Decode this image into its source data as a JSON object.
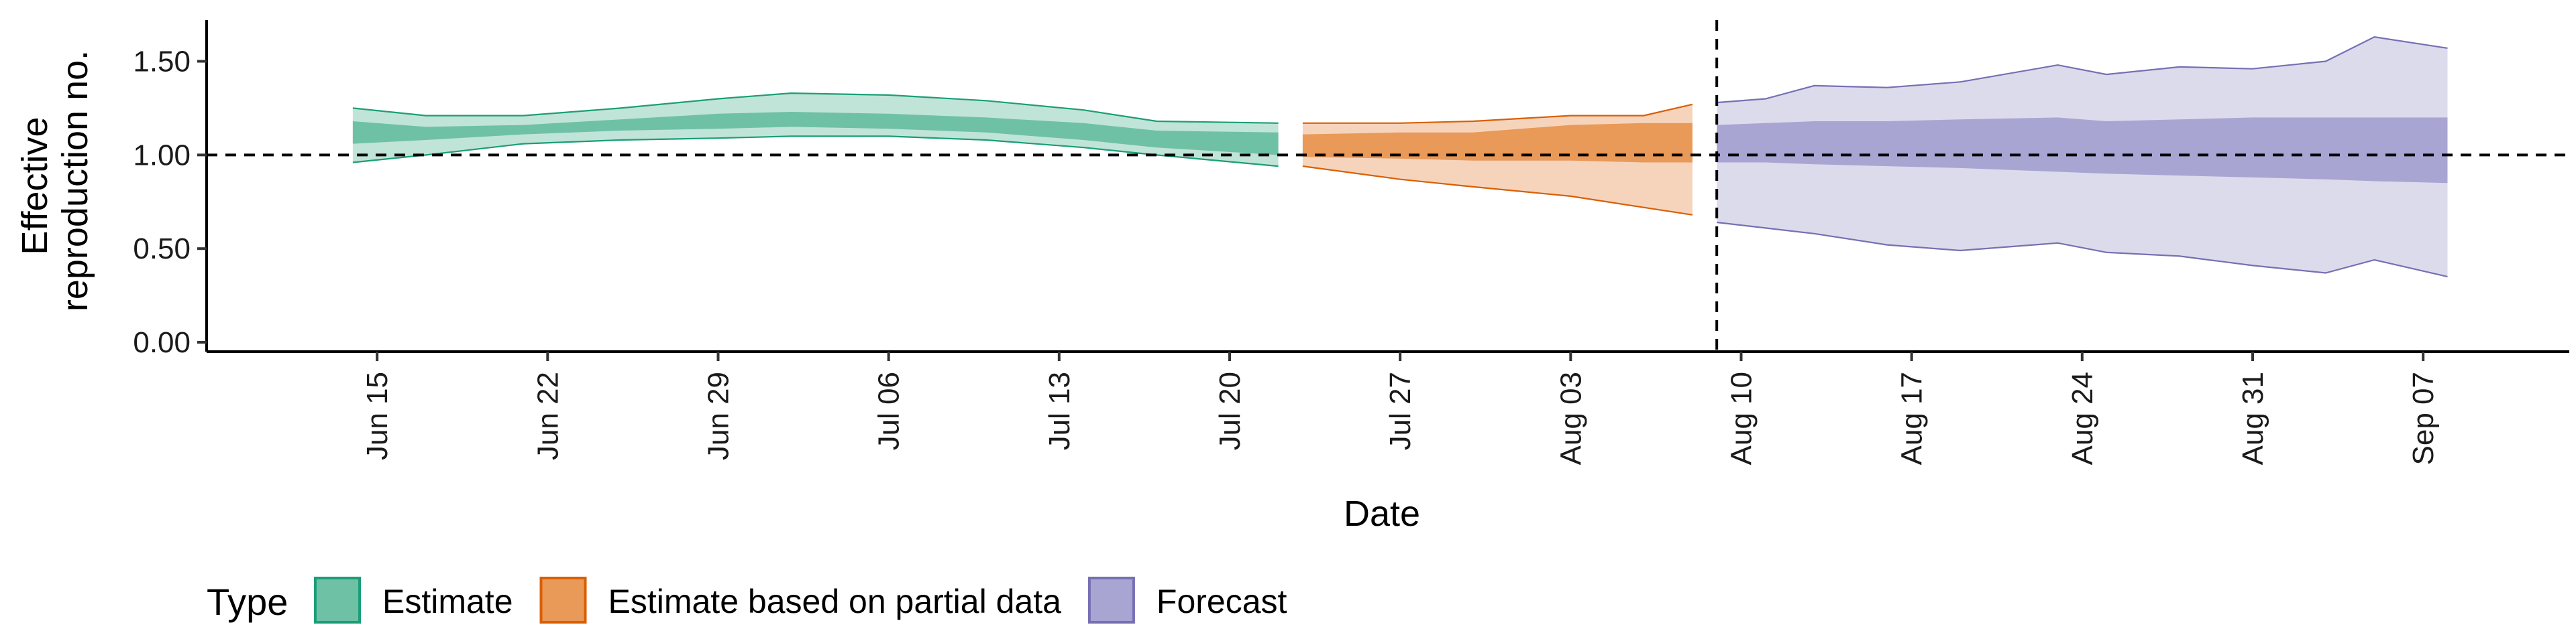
{
  "chart_data": {
    "type": "area",
    "xlabel": "Date",
    "ylabel_lines": [
      "Effective",
      "reproduction no."
    ],
    "ylim": [
      -0.05,
      1.72
    ],
    "y_ticks": [
      {
        "value": 0.0,
        "label": "0.00"
      },
      {
        "value": 0.5,
        "label": "0.50"
      },
      {
        "value": 1.0,
        "label": "1.00"
      },
      {
        "value": 1.5,
        "label": "1.50"
      }
    ],
    "x_start": "2020-06-08",
    "x_end": "2020-09-13",
    "x_ticks": [
      {
        "date": "2020-06-15",
        "label": "Jun 15"
      },
      {
        "date": "2020-06-22",
        "label": "Jun 22"
      },
      {
        "date": "2020-06-29",
        "label": "Jun 29"
      },
      {
        "date": "2020-07-06",
        "label": "Jul 06"
      },
      {
        "date": "2020-07-13",
        "label": "Jul 13"
      },
      {
        "date": "2020-07-20",
        "label": "Jul 20"
      },
      {
        "date": "2020-07-27",
        "label": "Jul 27"
      },
      {
        "date": "2020-08-03",
        "label": "Aug 03"
      },
      {
        "date": "2020-08-10",
        "label": "Aug 10"
      },
      {
        "date": "2020-08-17",
        "label": "Aug 17"
      },
      {
        "date": "2020-08-24",
        "label": "Aug 24"
      },
      {
        "date": "2020-08-31",
        "label": "Aug 31"
      },
      {
        "date": "2020-09-07",
        "label": "Sep 07"
      }
    ],
    "reference_line_y": 1.0,
    "vertical_line_date": "2020-08-09",
    "grid": false,
    "legend_position": "bottom",
    "legend_title": "Type",
    "series": [
      {
        "name": "Estimate",
        "fill_light": "#c1e4d8",
        "fill_dark": "#6fc1a6",
        "outline": "#1b9e77",
        "points": [
          {
            "date": "2020-06-14",
            "lower90": 0.96,
            "upper90": 1.25,
            "lower50": 1.06,
            "upper50": 1.18
          },
          {
            "date": "2020-06-17",
            "lower90": 1.0,
            "upper90": 1.21,
            "lower50": 1.08,
            "upper50": 1.15
          },
          {
            "date": "2020-06-21",
            "lower90": 1.06,
            "upper90": 1.21,
            "lower50": 1.11,
            "upper50": 1.16
          },
          {
            "date": "2020-06-25",
            "lower90": 1.08,
            "upper90": 1.25,
            "lower50": 1.13,
            "upper50": 1.19
          },
          {
            "date": "2020-06-29",
            "lower90": 1.09,
            "upper90": 1.3,
            "lower50": 1.14,
            "upper50": 1.22
          },
          {
            "date": "2020-07-02",
            "lower90": 1.1,
            "upper90": 1.33,
            "lower50": 1.15,
            "upper50": 1.23
          },
          {
            "date": "2020-07-06",
            "lower90": 1.1,
            "upper90": 1.32,
            "lower50": 1.14,
            "upper50": 1.22
          },
          {
            "date": "2020-07-10",
            "lower90": 1.08,
            "upper90": 1.29,
            "lower50": 1.12,
            "upper50": 1.2
          },
          {
            "date": "2020-07-14",
            "lower90": 1.04,
            "upper90": 1.24,
            "lower50": 1.08,
            "upper50": 1.17
          },
          {
            "date": "2020-07-17",
            "lower90": 1.0,
            "upper90": 1.18,
            "lower50": 1.04,
            "upper50": 1.13
          },
          {
            "date": "2020-07-22",
            "lower90": 0.94,
            "upper90": 1.17,
            "lower50": 1.0,
            "upper50": 1.12
          }
        ]
      },
      {
        "name": "Estimate based on partial data",
        "fill_light": "#f6d4bc",
        "fill_dark": "#e99958",
        "outline": "#d95f02",
        "points": [
          {
            "date": "2020-07-23",
            "lower90": 0.94,
            "upper90": 1.17,
            "lower50": 0.99,
            "upper50": 1.11
          },
          {
            "date": "2020-07-27",
            "lower90": 0.87,
            "upper90": 1.17,
            "lower50": 0.98,
            "upper50": 1.12
          },
          {
            "date": "2020-07-30",
            "lower90": 0.83,
            "upper90": 1.18,
            "lower50": 0.97,
            "upper50": 1.12
          },
          {
            "date": "2020-08-03",
            "lower90": 0.78,
            "upper90": 1.21,
            "lower50": 0.97,
            "upper50": 1.16
          },
          {
            "date": "2020-08-06",
            "lower90": 0.72,
            "upper90": 1.21,
            "lower50": 0.96,
            "upper50": 1.17
          },
          {
            "date": "2020-08-08",
            "lower90": 0.68,
            "upper90": 1.27,
            "lower50": 0.96,
            "upper50": 1.17
          }
        ]
      },
      {
        "name": "Forecast",
        "fill_light": "#dcdbec",
        "fill_dark": "#a9a5d3",
        "outline": "#7570b3",
        "points": [
          {
            "date": "2020-08-09",
            "lower90": 0.64,
            "upper90": 1.28,
            "lower50": 0.96,
            "upper50": 1.16
          },
          {
            "date": "2020-08-11",
            "lower90": 0.61,
            "upper90": 1.3,
            "lower50": 0.96,
            "upper50": 1.17
          },
          {
            "date": "2020-08-13",
            "lower90": 0.58,
            "upper90": 1.37,
            "lower50": 0.95,
            "upper50": 1.18
          },
          {
            "date": "2020-08-16",
            "lower90": 0.52,
            "upper90": 1.36,
            "lower50": 0.94,
            "upper50": 1.18
          },
          {
            "date": "2020-08-19",
            "lower90": 0.49,
            "upper90": 1.39,
            "lower50": 0.93,
            "upper50": 1.19
          },
          {
            "date": "2020-08-23",
            "lower90": 0.53,
            "upper90": 1.48,
            "lower50": 0.91,
            "upper50": 1.2
          },
          {
            "date": "2020-08-25",
            "lower90": 0.48,
            "upper90": 1.43,
            "lower50": 0.9,
            "upper50": 1.18
          },
          {
            "date": "2020-08-28",
            "lower90": 0.46,
            "upper90": 1.47,
            "lower50": 0.89,
            "upper50": 1.19
          },
          {
            "date": "2020-08-31",
            "lower90": 0.41,
            "upper90": 1.46,
            "lower50": 0.88,
            "upper50": 1.2
          },
          {
            "date": "2020-09-03",
            "lower90": 0.37,
            "upper90": 1.5,
            "lower50": 0.87,
            "upper50": 1.2
          },
          {
            "date": "2020-09-05",
            "lower90": 0.44,
            "upper90": 1.63,
            "lower50": 0.86,
            "upper50": 1.2
          },
          {
            "date": "2020-09-08",
            "lower90": 0.35,
            "upper90": 1.57,
            "lower50": 0.85,
            "upper50": 1.2
          }
        ]
      }
    ]
  }
}
